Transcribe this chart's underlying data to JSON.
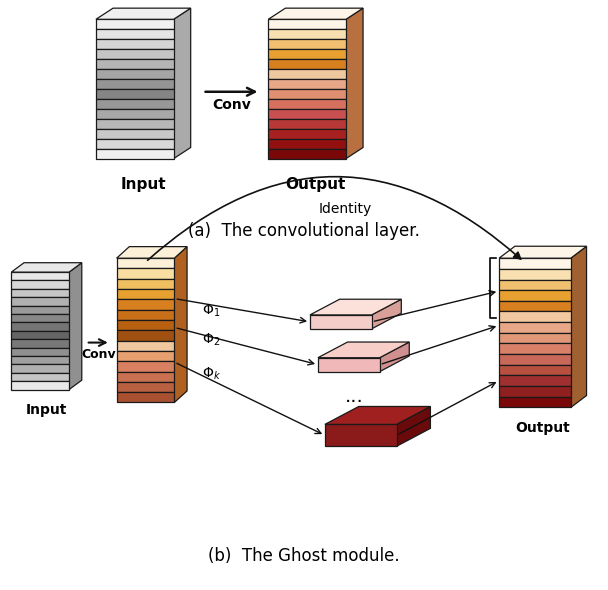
{
  "fig_width": 6.08,
  "fig_height": 5.9,
  "bg_color": "#ffffff",
  "caption_a": "(a)  The convolutional layer.",
  "caption_b": "(b)  The Ghost module.",
  "label_input": "Input",
  "label_output": "Output",
  "label_conv": "Conv",
  "label_identity": "Identity",
  "label_phi1": "$\\Phi_1$",
  "label_phi2": "$\\Phi_2$",
  "label_phik": "$\\Phi_k$",
  "gray_top_to_bot": [
    "#f0f0f0",
    "#e4e4e4",
    "#d5d5d5",
    "#c5c5c5",
    "#b5b5b5",
    "#a5a5a5",
    "#959595",
    "#858585",
    "#989898",
    "#a8a8a8",
    "#b8b8b8",
    "#c8c8c8",
    "#d8d8d8",
    "#f0f0f0"
  ],
  "warm_top_to_bot": [
    "#fdf5e8",
    "#f8e0b0",
    "#f0c070",
    "#e8a030",
    "#d88020",
    "#f0c8a0",
    "#e8a888",
    "#e09070",
    "#d87060",
    "#c85050",
    "#b83838",
    "#a82020",
    "#921010",
    "#7a0808"
  ],
  "ghost_gray_top_to_bot": [
    "#e8e8e8",
    "#d8d8d8",
    "#c5c5c5",
    "#b0b0b0",
    "#9a9a9a",
    "#888888",
    "#757575",
    "#656565",
    "#787878",
    "#909090",
    "#a0a0a0",
    "#b0b0b0",
    "#c5c5c5",
    "#e8e8e8"
  ],
  "ghost_warm_mid_top_to_bot": [
    "#fdf0d8",
    "#f8dea0",
    "#f0c060",
    "#e8a030",
    "#d88020",
    "#c87018",
    "#b86010",
    "#a05010",
    "#f0c8a0",
    "#e8a070",
    "#d88060",
    "#c87050",
    "#b86040",
    "#a85030"
  ],
  "ghost_out_top_to_bot": [
    "#fdf5e8",
    "#f8e0b0",
    "#f0c070",
    "#e8a030",
    "#d88020",
    "#f2c8a0",
    "#e8a888",
    "#e09878",
    "#d88068",
    "#c86858",
    "#b85040",
    "#a03030",
    "#902020",
    "#7a0808"
  ],
  "flat1_face": "#f5cdc8",
  "flat1_top": "#fce0da",
  "flat1_side": "#d8a098",
  "flat2_face": "#f0b8b8",
  "flat2_top": "#f8cec8",
  "flat2_side": "#d09090",
  "flatk_face": "#8b1a1a",
  "flatk_top": "#a02020",
  "flatk_side": "#6b0a0a",
  "edge_color": "#1a1a1a",
  "arrow_color": "#111111",
  "side_gray": "#aaaaaa",
  "side_warm": "#b87040",
  "side_ghost_gray": "#909090",
  "side_ghost_mid": "#b06020",
  "side_ghost_out": "#a06030"
}
